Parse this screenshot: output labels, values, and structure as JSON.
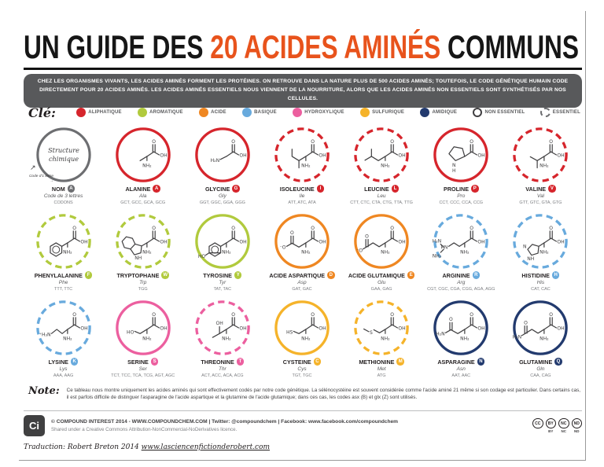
{
  "title": {
    "part1": "UN GUIDE DES ",
    "part2": "20 ACIDES AMINÉS",
    "part3": " COMMUNS",
    "accent_color": "#e8531c"
  },
  "intro": "CHEZ LES ORGANISMES VIVANTS, LES ACIDES AMINÉS FORMENT LES PROTÉINES. ON RETROUVE DANS LA NATURE PLUS DE 500 ACIDES AMINÉS; TOUTEFOIS, LE CODE GÉNÉTIQUE HUMAIN CODE DIRECTEMENT POUR 20 ACIDES AMINÉS. LES ACIDES AMINÉS ESSENTIELS NOUS VIENNENT DE LA NOURRITURE, ALORS QUE LES ACIDES AMINÉS NON ESSENTIELS SONT SYNTHÉTISÉS PAR NOS CELLULES.",
  "key": {
    "label": "Clé:",
    "items": [
      {
        "label": "ALIPHATIQUE",
        "style": "filled",
        "color": "#d6252c"
      },
      {
        "label": "AROMATIQUE",
        "style": "filled",
        "color": "#b1ca3d"
      },
      {
        "label": "ACIDE",
        "style": "filled",
        "color": "#ef8722"
      },
      {
        "label": "BASIQUE",
        "style": "filled",
        "color": "#68aadd"
      },
      {
        "label": "HYDROXYLIQUE",
        "style": "filled",
        "color": "#ec5f9f"
      },
      {
        "label": "SULFURIQUE",
        "style": "filled",
        "color": "#f5b32a"
      },
      {
        "label": "AMIDIQUE",
        "style": "filled",
        "color": "#223a6e"
      },
      {
        "label": "NON ESSENTIEL",
        "style": "outline",
        "color": "#414042"
      },
      {
        "label": "ESSENTIEL",
        "style": "dashed",
        "color": "#6d6e71"
      }
    ]
  },
  "legend": {
    "structure_line1": "Structure",
    "structure_line2": "chimique",
    "ring_arrow_glyph": "↗",
    "one_letter_label": "Code d'1 lettre",
    "arrow_glyph": "→",
    "name_label": "NOM",
    "letter": "A",
    "letter_color": "#6d6e71",
    "three_letter_label": "Code de 3 lettres",
    "codons_label": "CODONS"
  },
  "category_colors": {
    "aliphatique": "#d6252c",
    "aromatique": "#b1ca3d",
    "acide": "#ef8722",
    "basique": "#68aadd",
    "hydroxylique": "#ec5f9f",
    "sulfurique": "#f5b32a",
    "amidique": "#223a6e"
  },
  "amino_acids": [
    {
      "id": "ala",
      "name": "ALANINE",
      "letter": "A",
      "code": "Ala",
      "category": "aliphatique",
      "essentiel": false,
      "codons": [
        "GCT",
        "GCC",
        "GCA",
        "GCG"
      ]
    },
    {
      "id": "gly",
      "name": "GLYCINE",
      "letter": "G",
      "code": "Gly",
      "category": "aliphatique",
      "essentiel": false,
      "codons": [
        "GGT",
        "GGC",
        "GGA",
        "GGG"
      ]
    },
    {
      "id": "ile",
      "name": "ISOLEUCINE",
      "letter": "I",
      "code": "Ile",
      "category": "aliphatique",
      "essentiel": true,
      "codons": [
        "ATT",
        "ATC",
        "ATA"
      ]
    },
    {
      "id": "leu",
      "name": "LEUCINE",
      "letter": "L",
      "code": "Leu",
      "category": "aliphatique",
      "essentiel": true,
      "codons": [
        "CTT",
        "CTC",
        "CTA",
        "CTG",
        "TTA",
        "TTG"
      ]
    },
    {
      "id": "pro",
      "name": "PROLINE",
      "letter": "P",
      "code": "Pro",
      "category": "aliphatique",
      "essentiel": false,
      "codons": [
        "CCT",
        "CCC",
        "CCA",
        "CCG"
      ]
    },
    {
      "id": "val",
      "name": "VALINE",
      "letter": "V",
      "code": "Val",
      "category": "aliphatique",
      "essentiel": true,
      "codons": [
        "GTT",
        "GTC",
        "GTA",
        "GTG"
      ]
    },
    {
      "id": "phe",
      "name": "PHENYLALANINE",
      "letter": "F",
      "code": "Phe",
      "category": "aromatique",
      "essentiel": true,
      "codons": [
        "TTT",
        "TTC"
      ]
    },
    {
      "id": "trp",
      "name": "TRYPTOPHANE",
      "letter": "W",
      "code": "Trp",
      "category": "aromatique",
      "essentiel": true,
      "codons": [
        "TGG"
      ]
    },
    {
      "id": "tyr",
      "name": "TYROSINE",
      "letter": "Y",
      "code": "Tyr",
      "category": "aromatique",
      "essentiel": false,
      "codons": [
        "TAT",
        "TAC"
      ]
    },
    {
      "id": "asp",
      "name": "ACIDE ASPARTIQUE",
      "letter": "D",
      "code": "Asp",
      "category": "acide",
      "essentiel": false,
      "codons": [
        "GAT",
        "GAC"
      ]
    },
    {
      "id": "glu",
      "name": "ACIDE GLUTAMIQUE",
      "letter": "E",
      "code": "Glu",
      "category": "acide",
      "essentiel": false,
      "codons": [
        "GAA",
        "GAG"
      ]
    },
    {
      "id": "arg",
      "name": "ARGININE",
      "letter": "R",
      "code": "Arg",
      "category": "basique",
      "essentiel": true,
      "codons": [
        "CGT",
        "CGC",
        "CGA",
        "CGG",
        "AGA",
        "AGG"
      ]
    },
    {
      "id": "his",
      "name": "HISTIDINE",
      "letter": "H",
      "code": "His",
      "category": "basique",
      "essentiel": true,
      "codons": [
        "CAT",
        "CAC"
      ]
    },
    {
      "id": "lys",
      "name": "LYSINE",
      "letter": "K",
      "code": "Lys",
      "category": "basique",
      "essentiel": true,
      "codons": [
        "AAA",
        "AAG"
      ]
    },
    {
      "id": "ser",
      "name": "SERINE",
      "letter": "S",
      "code": "Ser",
      "category": "hydroxylique",
      "essentiel": false,
      "codons": [
        "TCT",
        "TCC",
        "TCA",
        "TCG",
        "AGT",
        "AGC"
      ]
    },
    {
      "id": "thr",
      "name": "THREONINE",
      "letter": "T",
      "code": "Thr",
      "category": "hydroxylique",
      "essentiel": true,
      "codons": [
        "ACT",
        "ACC",
        "ACA",
        "ACG"
      ]
    },
    {
      "id": "cys",
      "name": "CYSTEINE",
      "letter": "C",
      "code": "Cys",
      "category": "sulfurique",
      "essentiel": false,
      "codons": [
        "TGT",
        "TGC"
      ]
    },
    {
      "id": "met",
      "name": "METHIONINE",
      "letter": "M",
      "code": "Met",
      "category": "sulfurique",
      "essentiel": true,
      "codons": [
        "ATG"
      ]
    },
    {
      "id": "asn",
      "name": "ASPARAGINE",
      "letter": "N",
      "code": "Asn",
      "category": "amidique",
      "essentiel": false,
      "codons": [
        "AAT",
        "AAC"
      ]
    },
    {
      "id": "gln",
      "name": "GLUTAMINE",
      "letter": "Q",
      "code": "Gln",
      "category": "amidique",
      "essentiel": false,
      "codons": [
        "CAA",
        "CAG"
      ]
    }
  ],
  "note": {
    "label": "Note:",
    "text": "Ce tableau nous montre uniquement les acides aminés qui sont effectivement codés par notre code génétique. La sélénocystéine est souvent considérée comme l'acide aminé 21 même si son codage est particulier. Dans certains cas, il est parfois difficile de distinguer l'asparagine de l'acide aspartique et la glutamine de l'acide glutamique; dans ces cas, les codes asx (B) et glx (Z) sont utilisés."
  },
  "footer": {
    "logo_text": "Ci",
    "line1": "© COMPOUND INTEREST 2014 - WWW.COMPOUNDCHEM.COM | Twitter: @compoundchem | Facebook: www.facebook.com/compoundchem",
    "line2": "Shared under a Creative Commons Attribution-NonCommercial-NoDerivatives licence.",
    "badges": [
      {
        "glyph": "CC",
        "label": ""
      },
      {
        "glyph": "BY",
        "label": "BY"
      },
      {
        "glyph": "NC",
        "label": "NC"
      },
      {
        "glyph": "ND",
        "label": "ND"
      }
    ],
    "translation_label": "Traduction: Robert Breton 2014",
    "translation_url": "www.lasciencenfictionderobert.com"
  }
}
